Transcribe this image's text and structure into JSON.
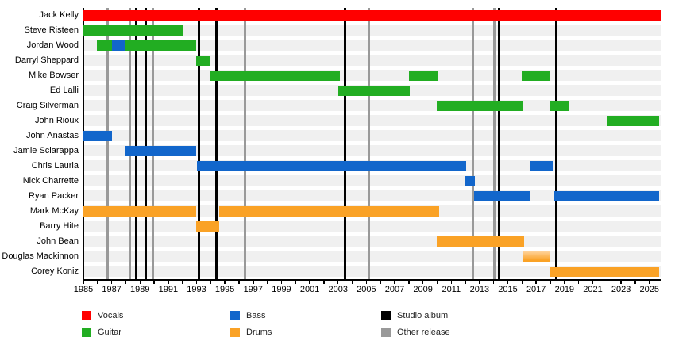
{
  "chart_data": {
    "type": "timeline",
    "description": "Band members timeline",
    "x_axis": {
      "min": 1985,
      "max": 2025.8,
      "tick_interval": 1,
      "label_interval": 2,
      "tick_labels": [
        "1985",
        "1987",
        "1989",
        "1991",
        "1993",
        "1995",
        "1997",
        "1999",
        "2001",
        "2003",
        "2005",
        "2007",
        "2009",
        "2011",
        "2013",
        "2015",
        "2017",
        "2019",
        "2021",
        "2023",
        "2025"
      ]
    },
    "colors": {
      "vocals": "#ff0000",
      "guitar": "#22ad22",
      "bass": "#1266cb",
      "drums": "#faa226",
      "drums_light": "#ffd39b",
      "studio_album": "#000000",
      "other_release": "#999999",
      "stripe": "#f0f0f0"
    },
    "members": [
      {
        "name": "Jack Kelly",
        "segments": [
          {
            "role": "vocals",
            "start": 1985,
            "end": 2025.8
          }
        ]
      },
      {
        "name": "Steve Risteen",
        "segments": [
          {
            "role": "guitar",
            "start": 1985,
            "end": 1992
          }
        ]
      },
      {
        "name": "Jordan Wood",
        "segments": [
          {
            "role": "guitar",
            "start": 1985.95,
            "end": 1987
          },
          {
            "role": "bass",
            "start": 1987,
            "end": 1988
          },
          {
            "role": "guitar",
            "start": 1988,
            "end": 1992.95
          }
        ]
      },
      {
        "name": "Darryl Sheppard",
        "segments": [
          {
            "role": "guitar",
            "start": 1992.95,
            "end": 1994
          }
        ]
      },
      {
        "name": "Mike Bowser",
        "segments": [
          {
            "role": "guitar",
            "start": 1994,
            "end": 2003.1
          },
          {
            "role": "guitar",
            "start": 2008,
            "end": 2010.05
          },
          {
            "role": "guitar",
            "start": 2016,
            "end": 2018
          }
        ]
      },
      {
        "name": "Ed Lalli",
        "segments": [
          {
            "role": "guitar",
            "start": 2003,
            "end": 2008.05
          }
        ]
      },
      {
        "name": "Craig Silverman",
        "segments": [
          {
            "role": "guitar",
            "start": 2010,
            "end": 2016.1
          },
          {
            "role": "guitar",
            "start": 2018,
            "end": 2019.3
          }
        ]
      },
      {
        "name": "John Rioux",
        "segments": [
          {
            "role": "guitar",
            "start": 2022,
            "end": 2025.7
          }
        ]
      },
      {
        "name": "John Anastas",
        "segments": [
          {
            "role": "bass",
            "start": 1985,
            "end": 1987
          }
        ]
      },
      {
        "name": "Jamie Sciarappa",
        "segments": [
          {
            "role": "bass",
            "start": 1988,
            "end": 1992.95
          }
        ]
      },
      {
        "name": "Chris Lauria",
        "segments": [
          {
            "role": "bass",
            "start": 1993,
            "end": 2012.05
          },
          {
            "role": "bass",
            "start": 2016.6,
            "end": 2018.25
          }
        ]
      },
      {
        "name": "Nick Charrette",
        "segments": [
          {
            "role": "bass",
            "start": 2012,
            "end": 2012.65
          }
        ]
      },
      {
        "name": "Ryan Packer",
        "segments": [
          {
            "role": "bass",
            "start": 2012.6,
            "end": 2016.6
          },
          {
            "role": "bass",
            "start": 2018.3,
            "end": 2025.7
          }
        ]
      },
      {
        "name": "Mark McKay",
        "segments": [
          {
            "role": "drums",
            "start": 1985,
            "end": 1992.95
          },
          {
            "role": "drums",
            "start": 1994.6,
            "end": 2010.15
          }
        ]
      },
      {
        "name": "Barry Hite",
        "segments": [
          {
            "role": "drums",
            "start": 1992.95,
            "end": 1994.6
          }
        ]
      },
      {
        "name": "John Bean",
        "segments": [
          {
            "role": "drums",
            "start": 2010,
            "end": 2016.15
          }
        ]
      },
      {
        "name": "Douglas Mackinnon",
        "segments": [
          {
            "role": "drums",
            "start": 2016.05,
            "end": 2018,
            "variant": "light"
          }
        ]
      },
      {
        "name": "Corey Koniz",
        "segments": [
          {
            "role": "drums",
            "start": 2018,
            "end": 2025.7
          }
        ]
      }
    ],
    "releases": [
      {
        "year": 1986.7,
        "type": "other"
      },
      {
        "year": 1988.3,
        "type": "other"
      },
      {
        "year": 1988.75,
        "type": "studio"
      },
      {
        "year": 1989.4,
        "type": "studio"
      },
      {
        "year": 1989.9,
        "type": "other"
      },
      {
        "year": 1993.15,
        "type": "studio"
      },
      {
        "year": 1994.4,
        "type": "studio"
      },
      {
        "year": 1996.4,
        "type": "other"
      },
      {
        "year": 2003.5,
        "type": "studio"
      },
      {
        "year": 2005.2,
        "type": "other"
      },
      {
        "year": 2012.5,
        "type": "other"
      },
      {
        "year": 2014.05,
        "type": "other"
      },
      {
        "year": 2014.4,
        "type": "studio"
      },
      {
        "year": 2018.4,
        "type": "studio"
      }
    ],
    "legend": [
      {
        "label": "Vocals",
        "color_key": "vocals"
      },
      {
        "label": "Guitar",
        "color_key": "guitar"
      },
      {
        "label": "Bass",
        "color_key": "bass"
      },
      {
        "label": "Drums",
        "color_key": "drums"
      },
      {
        "label": "Studio album",
        "color_key": "studio_album"
      },
      {
        "label": "Other release",
        "color_key": "other_release"
      }
    ]
  }
}
